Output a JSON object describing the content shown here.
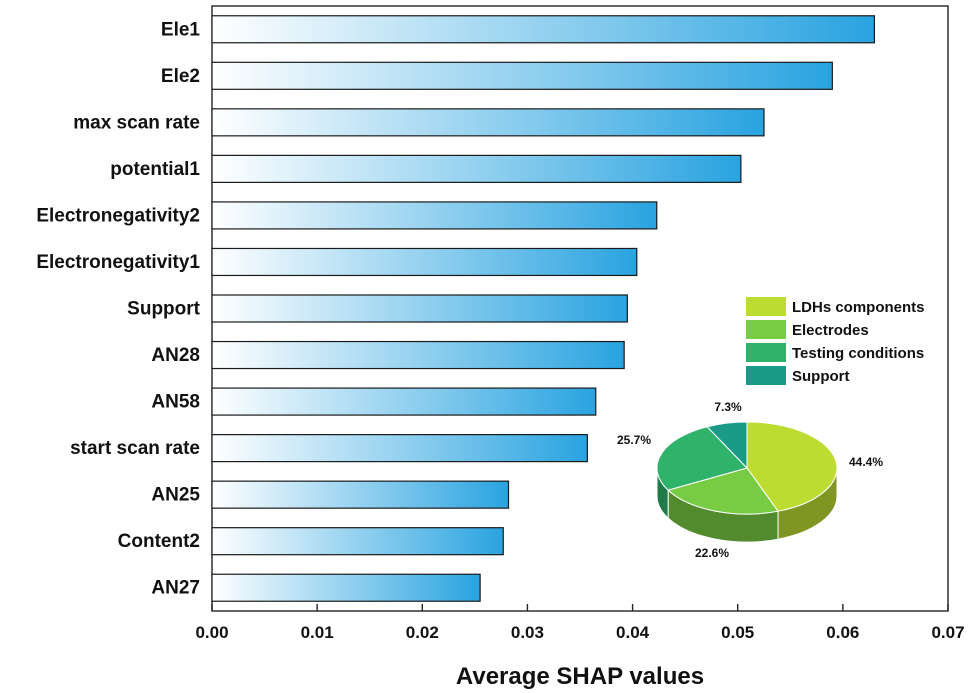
{
  "chart_data": {
    "type": "bar",
    "orientation": "horizontal",
    "categories": [
      "Ele1",
      "Ele2",
      "max scan rate",
      "potential1",
      "Electronegativity2",
      "Electronegativity1",
      "Support",
      "AN28",
      "AN58",
      "start scan rate",
      "AN25",
      "Content2",
      "AN27"
    ],
    "values": [
      0.063,
      0.059,
      0.0525,
      0.0503,
      0.0423,
      0.0404,
      0.0395,
      0.0392,
      0.0365,
      0.0357,
      0.0282,
      0.0277,
      0.0255
    ],
    "xlabel": "Average SHAP values",
    "ylabel": "",
    "xlim": [
      0,
      0.07
    ],
    "xticks": [
      "0.00",
      "0.01",
      "0.02",
      "0.03",
      "0.04",
      "0.05",
      "0.06",
      "0.07"
    ],
    "grid": false,
    "bar_gradient": [
      "#ffffff",
      "#29a3e0"
    ],
    "inset_pie": {
      "type": "pie",
      "style": "3d",
      "legend_position": "top-right",
      "slices": [
        {
          "label": "LDHs components",
          "value": 44.4,
          "value_label": "44.4%",
          "color": "#bddc32"
        },
        {
          "label": "Electrodes",
          "value": 22.6,
          "value_label": "22.6%",
          "color": "#77cc44"
        },
        {
          "label": "Testing conditions",
          "value": 25.7,
          "value_label": "25.7%",
          "color": "#2fb36a"
        },
        {
          "label": "Support",
          "value": 7.3,
          "value_label": "7.3%",
          "color": "#1a9a88"
        }
      ]
    }
  }
}
